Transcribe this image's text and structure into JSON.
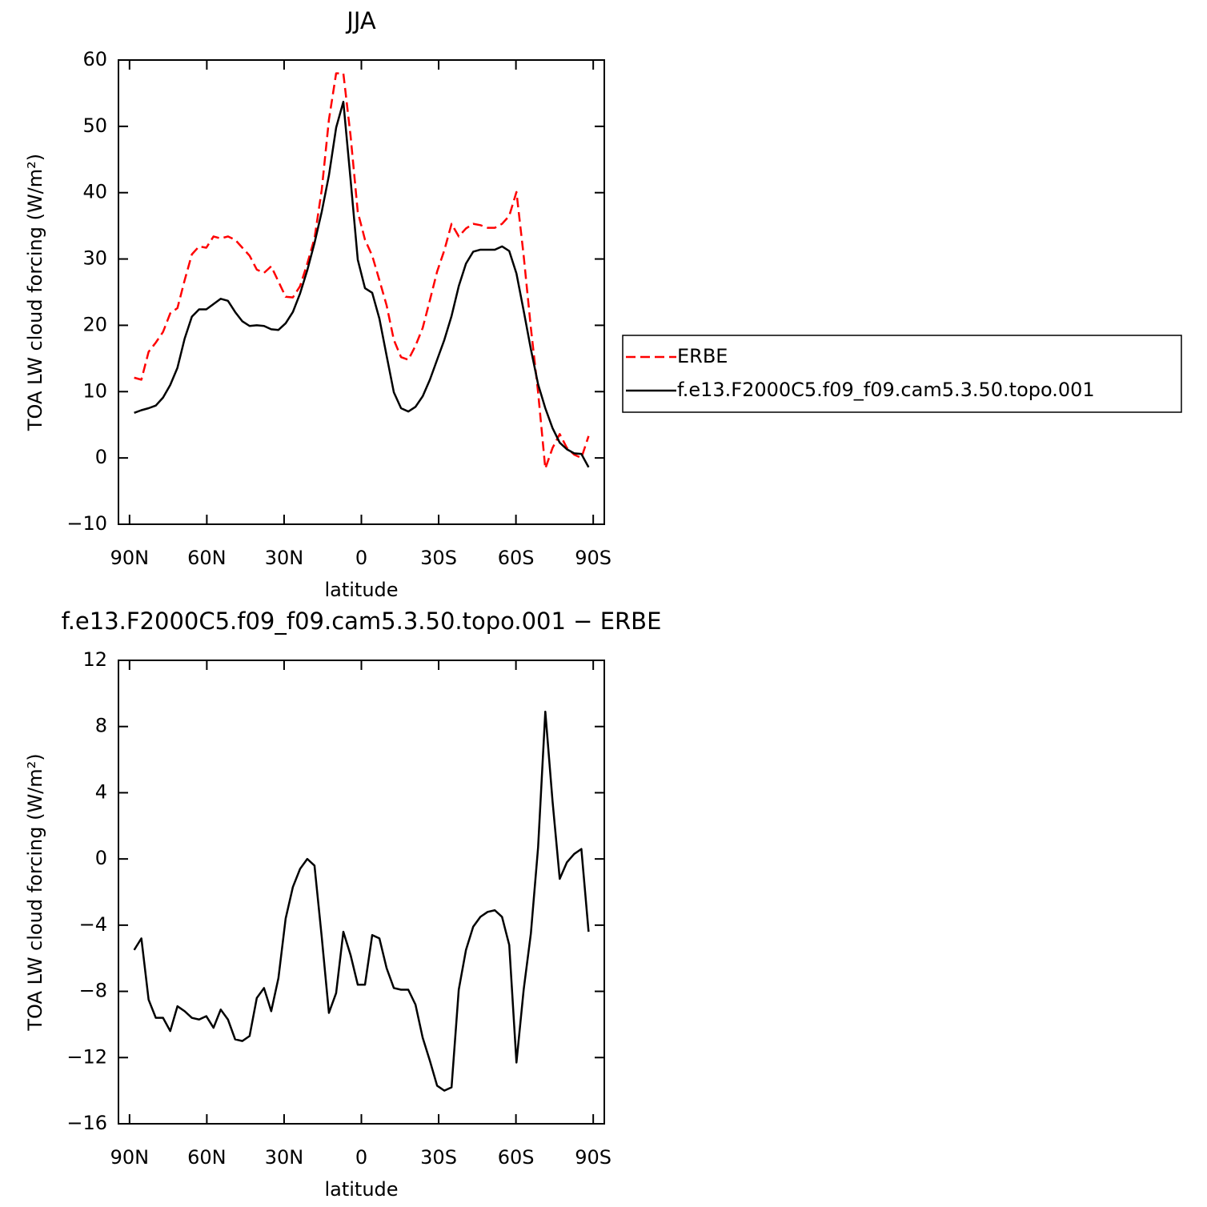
{
  "chart_data": [
    {
      "type": "line",
      "title": "JJA",
      "x": [
        88.2,
        85.4,
        82.6,
        79.8,
        77.0,
        74.2,
        71.4,
        68.6,
        65.8,
        63.0,
        60.2,
        57.4,
        54.6,
        51.8,
        49.0,
        46.2,
        43.4,
        40.6,
        37.8,
        35.0,
        32.2,
        29.4,
        26.6,
        23.8,
        21.0,
        18.2,
        15.4,
        12.6,
        9.8,
        7.0,
        4.2,
        1.4,
        -1.4,
        -4.2,
        -7.0,
        -9.8,
        -12.6,
        -15.4,
        -18.2,
        -21.0,
        -23.8,
        -26.6,
        -29.4,
        -32.2,
        -35.0,
        -37.8,
        -40.6,
        -43.4,
        -46.2,
        -49.0,
        -51.8,
        -54.6,
        -57.4,
        -60.2,
        -63.0,
        -65.8,
        -68.6,
        -71.4,
        -74.2,
        -77.0,
        -79.8,
        -82.6,
        -85.4,
        -88.2
      ],
      "xlim": [
        94.3,
        -94.3
      ],
      "xticks": [
        {
          "value": 90,
          "label": "90N"
        },
        {
          "value": 60,
          "label": "60N"
        },
        {
          "value": 30,
          "label": "30N"
        },
        0,
        {
          "value": -30,
          "label": "30S"
        },
        {
          "value": -60,
          "label": "60S"
        },
        {
          "value": -90,
          "label": "90S"
        }
      ],
      "ylim": [
        -10,
        60
      ],
      "yticks": [
        {
          "value": -10,
          "label": "−10"
        },
        0,
        10,
        20,
        30,
        40,
        50,
        60
      ],
      "xlabel": "latitude",
      "ylabel": "TOA LW cloud forcing (W/m²)",
      "legend": "right",
      "series": [
        {
          "name": "ERBE",
          "color": "#ff0000",
          "line_style": "dashed",
          "values": [
            12.1,
            11.8,
            16.0,
            17.4,
            19.0,
            21.8,
            22.6,
            26.8,
            30.7,
            31.9,
            31.7,
            33.4,
            33.1,
            33.4,
            32.9,
            31.7,
            30.5,
            28.4,
            27.9,
            28.9,
            26.6,
            24.3,
            24.2,
            25.9,
            29.3,
            33.1,
            40.4,
            51.0,
            58.0,
            58.0,
            48.6,
            37.1,
            32.9,
            30.5,
            26.8,
            23.0,
            17.8,
            15.2,
            14.8,
            16.9,
            19.6,
            23.8,
            28.1,
            31.3,
            35.3,
            33.4,
            34.6,
            35.3,
            35.1,
            34.7,
            34.7,
            35.3,
            36.5,
            40.1,
            30.5,
            19.6,
            9.9,
            -1.6,
            1.5,
            3.6,
            1.5,
            0.5,
            0.0,
            3.3
          ]
        },
        {
          "name": "f.e13.F2000C5.f09_f09.cam5.3.50.topo.001",
          "color": "#000000",
          "line_style": "solid",
          "values": [
            6.8,
            7.2,
            7.5,
            7.9,
            9.1,
            11.0,
            13.6,
            18.0,
            21.3,
            22.4,
            22.4,
            23.2,
            24.0,
            23.7,
            22.0,
            20.6,
            19.9,
            20.0,
            19.9,
            19.4,
            19.3,
            20.3,
            22.0,
            24.8,
            28.3,
            32.4,
            37.1,
            42.6,
            49.8,
            53.7,
            42.0,
            29.9,
            25.6,
            24.9,
            21.0,
            15.4,
            9.9,
            7.5,
            7.0,
            7.7,
            9.3,
            11.8,
            14.8,
            17.8,
            21.4,
            25.9,
            29.3,
            31.1,
            31.4,
            31.4,
            31.4,
            31.9,
            31.2,
            27.8,
            22.2,
            16.4,
            11.1,
            7.5,
            4.5,
            2.3,
            1.3,
            0.7,
            0.6,
            -1.4
          ]
        }
      ]
    },
    {
      "type": "line",
      "title": "f.e13.F2000C5.f09_f09.cam5.3.50.topo.001 − ERBE",
      "x": [
        88.2,
        85.4,
        82.6,
        79.8,
        77.0,
        74.2,
        71.4,
        68.6,
        65.8,
        63.0,
        60.2,
        57.4,
        54.6,
        51.8,
        49.0,
        46.2,
        43.4,
        40.6,
        37.8,
        35.0,
        32.2,
        29.4,
        26.6,
        23.8,
        21.0,
        18.2,
        15.4,
        12.6,
        9.8,
        7.0,
        4.2,
        1.4,
        -1.4,
        -4.2,
        -7.0,
        -9.8,
        -12.6,
        -15.4,
        -18.2,
        -21.0,
        -23.8,
        -26.6,
        -29.4,
        -32.2,
        -35.0,
        -37.8,
        -40.6,
        -43.4,
        -46.2,
        -49.0,
        -51.8,
        -54.6,
        -57.4,
        -60.2,
        -63.0,
        -65.8,
        -68.6,
        -71.4,
        -74.2,
        -77.0,
        -79.8,
        -82.6,
        -85.4,
        -88.2
      ],
      "xlim": [
        94.3,
        -94.3
      ],
      "xticks": [
        {
          "value": 90,
          "label": "90N"
        },
        {
          "value": 60,
          "label": "60N"
        },
        {
          "value": 30,
          "label": "30N"
        },
        0,
        {
          "value": -30,
          "label": "30S"
        },
        {
          "value": -60,
          "label": "60S"
        },
        {
          "value": -90,
          "label": "90S"
        }
      ],
      "ylim": [
        -16,
        12
      ],
      "yticks": [
        {
          "value": -16,
          "label": "−16"
        },
        {
          "value": -12,
          "label": "−12"
        },
        {
          "value": -8,
          "label": "−8"
        },
        {
          "value": -4,
          "label": "−4"
        },
        0,
        4,
        8,
        12
      ],
      "xlabel": "latitude",
      "ylabel": "TOA LW cloud forcing (W/m²)",
      "series": [
        {
          "color": "#000000",
          "line_style": "solid",
          "values": [
            -5.5,
            -4.8,
            -8.5,
            -9.6,
            -9.6,
            -10.4,
            -8.9,
            -9.2,
            -9.6,
            -9.7,
            -9.5,
            -10.2,
            -9.1,
            -9.7,
            -10.9,
            -11.0,
            -10.7,
            -8.4,
            -7.8,
            -9.2,
            -7.2,
            -3.6,
            -1.7,
            -0.6,
            0.0,
            -0.4,
            -4.7,
            -9.3,
            -8.1,
            -4.4,
            -5.8,
            -7.6,
            -7.6,
            -4.6,
            -4.8,
            -6.6,
            -7.8,
            -7.9,
            -7.9,
            -8.8,
            -10.8,
            -12.2,
            -13.7,
            -14.0,
            -13.8,
            -7.9,
            -5.5,
            -4.1,
            -3.5,
            -3.2,
            -3.1,
            -3.5,
            -5.2,
            -12.3,
            -7.9,
            -4.5,
            0.7,
            8.9,
            3.5,
            -1.2,
            -0.2,
            0.3,
            0.6,
            -4.4
          ]
        }
      ]
    }
  ]
}
